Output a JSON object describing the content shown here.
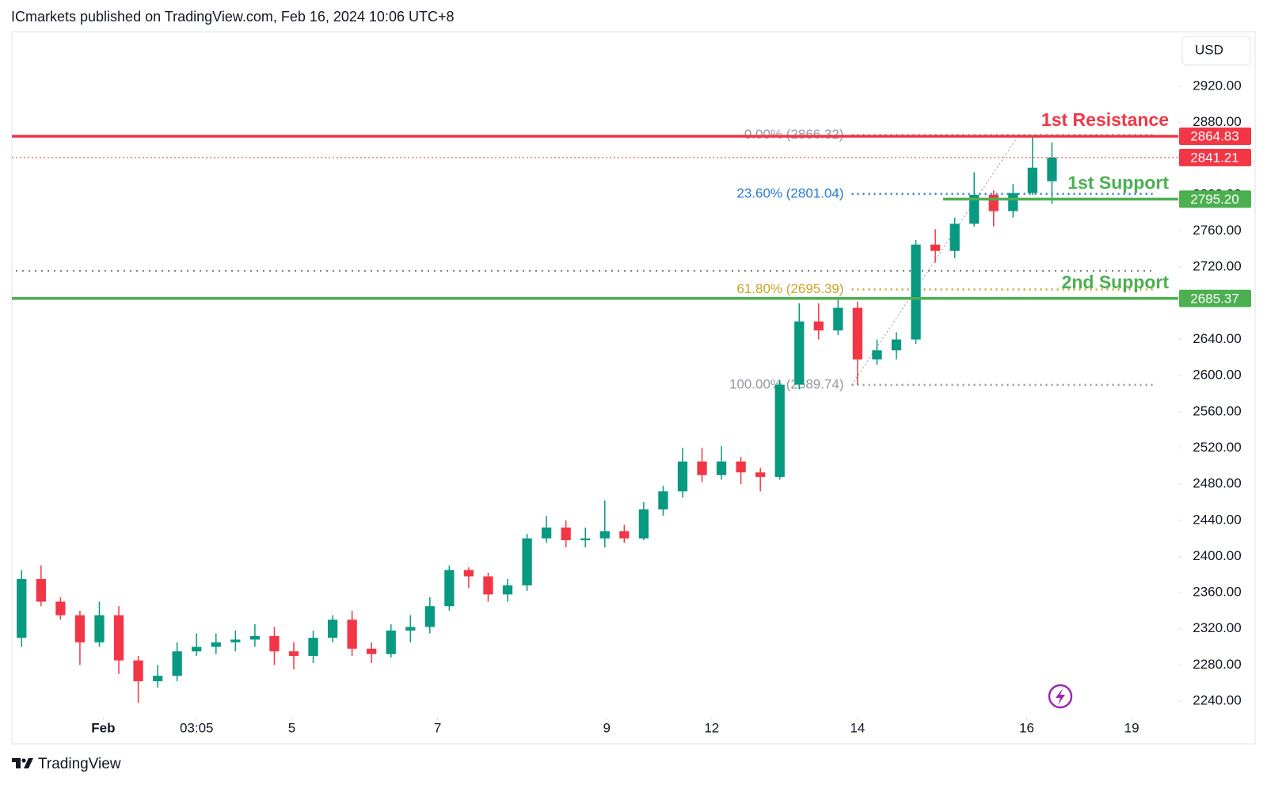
{
  "header": {
    "title": "ICmarkets published on TradingView.com, Feb 16, 2024 10:06 UTC+8"
  },
  "footer": {
    "logo": "TradingView"
  },
  "chart_data": {
    "type": "candlestick",
    "currency": "USD",
    "up_color": "#089981",
    "down_color": "#f23645",
    "xlim": [
      -0.5,
      59.5
    ],
    "ylim": [
      2222.5,
      2979.6
    ],
    "xticks": [
      {
        "value": 4.2,
        "label": "Feb"
      },
      {
        "value": 9.0,
        "label": "03:05"
      },
      {
        "value": 13.9,
        "label": "5"
      },
      {
        "value": 21.4,
        "label": "7"
      },
      {
        "value": 30.1,
        "label": "9"
      },
      {
        "value": 35.5,
        "label": "12"
      },
      {
        "value": 43.0,
        "label": "14"
      },
      {
        "value": 51.7,
        "label": "16"
      },
      {
        "value": 57.1,
        "label": "19"
      }
    ],
    "yticks": [
      {
        "value": 2240,
        "label": "2240.00"
      },
      {
        "value": 2280,
        "label": "2280.00"
      },
      {
        "value": 2320,
        "label": "2320.00"
      },
      {
        "value": 2360,
        "label": "2360.00"
      },
      {
        "value": 2400,
        "label": "2400.00"
      },
      {
        "value": 2440,
        "label": "2440.00"
      },
      {
        "value": 2480,
        "label": "2480.00"
      },
      {
        "value": 2520,
        "label": "2520.00"
      },
      {
        "value": 2560,
        "label": "2560.00"
      },
      {
        "value": 2600,
        "label": "2600.00"
      },
      {
        "value": 2640,
        "label": "2640.00"
      },
      {
        "value": 2680,
        "label": "2680.00"
      },
      {
        "value": 2720,
        "label": "2720.00"
      },
      {
        "value": 2760,
        "label": "2760.00"
      },
      {
        "value": 2800,
        "label": "2800.00"
      },
      {
        "value": 2840,
        "label": "2840.00"
      },
      {
        "value": 2880,
        "label": "2880.00"
      },
      {
        "value": 2920,
        "label": "2920.00"
      }
    ],
    "x": [
      0,
      1,
      2,
      3,
      4,
      5,
      6,
      7,
      8,
      9,
      10,
      11,
      12,
      13,
      14,
      15,
      16,
      17,
      18,
      19,
      20,
      21,
      22,
      23,
      24,
      25,
      26,
      27,
      28,
      29,
      30,
      31,
      32,
      33,
      34,
      35,
      36,
      37,
      38,
      39,
      40,
      41,
      42,
      43,
      44,
      45,
      46,
      47,
      48,
      49,
      50,
      51,
      52,
      53
    ],
    "open": [
      2310,
      2375,
      2350,
      2335,
      2305,
      2335,
      2285,
      2262,
      2268,
      2295,
      2300,
      2305,
      2308,
      2312,
      2295,
      2290,
      2310,
      2330,
      2298,
      2292,
      2318,
      2322,
      2345,
      2385,
      2378,
      2358,
      2368,
      2420,
      2432,
      2418,
      2420,
      2428,
      2420,
      2452,
      2472,
      2505,
      2490,
      2505,
      2493,
      2488,
      2590,
      2660,
      2650,
      2675,
      2618,
      2628,
      2640,
      2745,
      2738,
      2768,
      2800,
      2782,
      2802,
      2815
    ],
    "high": [
      2385,
      2390,
      2355,
      2340,
      2350,
      2345,
      2290,
      2280,
      2305,
      2315,
      2315,
      2318,
      2325,
      2322,
      2305,
      2318,
      2335,
      2340,
      2305,
      2325,
      2335,
      2355,
      2390,
      2388,
      2382,
      2375,
      2425,
      2445,
      2440,
      2432,
      2462,
      2435,
      2460,
      2478,
      2520,
      2520,
      2522,
      2510,
      2498,
      2595,
      2680,
      2680,
      2685,
      2682,
      2640,
      2648,
      2750,
      2762,
      2775,
      2825,
      2805,
      2812,
      2866,
      2858
    ],
    "low": [
      2300,
      2345,
      2330,
      2280,
      2300,
      2270,
      2238,
      2255,
      2262,
      2290,
      2292,
      2295,
      2300,
      2280,
      2275,
      2282,
      2305,
      2290,
      2282,
      2288,
      2305,
      2315,
      2340,
      2365,
      2350,
      2350,
      2362,
      2415,
      2410,
      2410,
      2410,
      2415,
      2418,
      2445,
      2465,
      2482,
      2485,
      2480,
      2472,
      2485,
      2585,
      2640,
      2645,
      2590,
      2612,
      2618,
      2635,
      2725,
      2730,
      2765,
      2765,
      2775,
      2800,
      2790
    ],
    "close": [
      2375,
      2350,
      2335,
      2305,
      2335,
      2285,
      2262,
      2268,
      2295,
      2300,
      2305,
      2308,
      2312,
      2295,
      2290,
      2310,
      2330,
      2298,
      2292,
      2318,
      2322,
      2345,
      2385,
      2378,
      2358,
      2368,
      2420,
      2432,
      2418,
      2420,
      2428,
      2420,
      2452,
      2472,
      2505,
      2490,
      2505,
      2493,
      2488,
      2590,
      2660,
      2650,
      2675,
      2618,
      2628,
      2640,
      2745,
      2738,
      2768,
      2800,
      2782,
      2802,
      2830,
      2841.21
    ],
    "reference_line": 2716,
    "levels": [
      {
        "name": "1st Resistance",
        "value": 2864.83,
        "value_label": "2864.83",
        "color": "#f23645",
        "style": "solid"
      },
      {
        "value": 2841.21,
        "value_label": "2841.21",
        "color": "#f23645",
        "style": "dotted"
      },
      {
        "name": "1st Support",
        "value": 2795.2,
        "value_label": "2795.20",
        "color": "#4caf50",
        "style": "solid",
        "start": 47.4
      },
      {
        "name": "2nd Support",
        "value": 2685.37,
        "value_label": "2685.37",
        "color": "#4caf50",
        "style": "solid"
      }
    ],
    "fib": {
      "start": 42.7,
      "end": 51.3,
      "levels": [
        {
          "label": "0.00% (2866.32)",
          "value": 2866.32,
          "color": "#9598a1"
        },
        {
          "label": "23.60% (2801.04)",
          "value": 2801.04,
          "color": "#2979d6"
        },
        {
          "label": "61.80% (2695.39)",
          "value": 2695.39,
          "color": "#c9a227"
        },
        {
          "label": "100.00% (2589.74)",
          "value": 2589.74,
          "color": "#9598a1"
        }
      ]
    }
  }
}
